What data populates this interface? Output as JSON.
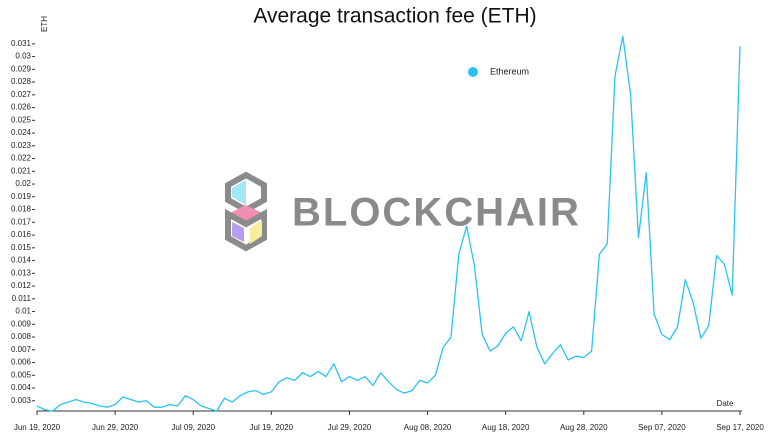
{
  "chart_data": {
    "type": "line",
    "title": "Average transaction fee (ETH)",
    "ylabel": "ETH",
    "xlabel": "Date",
    "watermark": "BLOCKCHAIR",
    "x": [
      "2020-06-19",
      "2020-06-20",
      "2020-06-21",
      "2020-06-22",
      "2020-06-23",
      "2020-06-24",
      "2020-06-25",
      "2020-06-26",
      "2020-06-27",
      "2020-06-28",
      "2020-06-29",
      "2020-06-30",
      "2020-07-01",
      "2020-07-02",
      "2020-07-03",
      "2020-07-04",
      "2020-07-05",
      "2020-07-06",
      "2020-07-07",
      "2020-07-08",
      "2020-07-09",
      "2020-07-10",
      "2020-07-11",
      "2020-07-12",
      "2020-07-13",
      "2020-07-14",
      "2020-07-15",
      "2020-07-16",
      "2020-07-17",
      "2020-07-18",
      "2020-07-19",
      "2020-07-20",
      "2020-07-21",
      "2020-07-22",
      "2020-07-23",
      "2020-07-24",
      "2020-07-25",
      "2020-07-26",
      "2020-07-27",
      "2020-07-28",
      "2020-07-29",
      "2020-07-30",
      "2020-07-31",
      "2020-08-01",
      "2020-08-02",
      "2020-08-03",
      "2020-08-04",
      "2020-08-05",
      "2020-08-06",
      "2020-08-07",
      "2020-08-08",
      "2020-08-09",
      "2020-08-10",
      "2020-08-11",
      "2020-08-12",
      "2020-08-13",
      "2020-08-14",
      "2020-08-15",
      "2020-08-16",
      "2020-08-17",
      "2020-08-18",
      "2020-08-19",
      "2020-08-20",
      "2020-08-21",
      "2020-08-22",
      "2020-08-23",
      "2020-08-24",
      "2020-08-25",
      "2020-08-26",
      "2020-08-27",
      "2020-08-28",
      "2020-08-29",
      "2020-08-30",
      "2020-08-31",
      "2020-09-01",
      "2020-09-02",
      "2020-09-03",
      "2020-09-04",
      "2020-09-05",
      "2020-09-06",
      "2020-09-07",
      "2020-09-08",
      "2020-09-09",
      "2020-09-10",
      "2020-09-11",
      "2020-09-12",
      "2020-09-13",
      "2020-09-14",
      "2020-09-15",
      "2020-09-16",
      "2020-09-17"
    ],
    "series": [
      {
        "name": "Ethereum",
        "color": "#29c4ef",
        "values": [
          0.0026,
          0.0023,
          0.0022,
          0.0027,
          0.0029,
          0.0031,
          0.0029,
          0.0028,
          0.0026,
          0.0025,
          0.0027,
          0.0033,
          0.0031,
          0.0029,
          0.003,
          0.0025,
          0.0025,
          0.0027,
          0.0026,
          0.0034,
          0.0031,
          0.0026,
          0.0024,
          0.0022,
          0.0032,
          0.0029,
          0.0034,
          0.0037,
          0.0038,
          0.0035,
          0.0037,
          0.0045,
          0.0048,
          0.0046,
          0.0052,
          0.0049,
          0.0053,
          0.0049,
          0.0059,
          0.0045,
          0.0049,
          0.0046,
          0.0049,
          0.0042,
          0.0052,
          0.0045,
          0.0039,
          0.0036,
          0.0038,
          0.0046,
          0.0044,
          0.005,
          0.0072,
          0.008,
          0.0145,
          0.0167,
          0.0136,
          0.0082,
          0.0069,
          0.0073,
          0.0083,
          0.0088,
          0.0077,
          0.01,
          0.0072,
          0.0059,
          0.0067,
          0.0074,
          0.0062,
          0.0065,
          0.0064,
          0.0069,
          0.0145,
          0.0153,
          0.0285,
          0.0316,
          0.027,
          0.0158,
          0.0209,
          0.0098,
          0.0082,
          0.0078,
          0.0088,
          0.0125,
          0.0107,
          0.0079,
          0.0089,
          0.0144,
          0.0137,
          0.0113,
          0.0308
        ]
      }
    ],
    "xticks": [
      {
        "value": "2020-06-19",
        "label": "Jun 19, 2020"
      },
      {
        "value": "2020-06-29",
        "label": "Jun 29, 2020"
      },
      {
        "value": "2020-07-09",
        "label": "Jul 09, 2020"
      },
      {
        "value": "2020-07-19",
        "label": "Jul 19, 2020"
      },
      {
        "value": "2020-07-29",
        "label": "Jul 29, 2020"
      },
      {
        "value": "2020-08-08",
        "label": "Aug 08, 2020"
      },
      {
        "value": "2020-08-18",
        "label": "Aug 18, 2020"
      },
      {
        "value": "2020-08-28",
        "label": "Aug 28, 2020"
      },
      {
        "value": "2020-09-07",
        "label": "Sep 07, 2020"
      },
      {
        "value": "2020-09-17",
        "label": "Sep 17, 2020"
      }
    ],
    "ylim": [
      0.0022,
      0.0313
    ],
    "yticks": [
      0.003,
      0.004,
      0.005,
      0.006,
      0.007,
      0.008,
      0.009,
      0.01,
      0.011,
      0.012,
      0.013,
      0.014,
      0.015,
      0.016,
      0.017,
      0.018,
      0.019,
      0.02,
      0.021,
      0.022,
      0.023,
      0.024,
      0.025,
      0.026,
      0.027,
      0.028,
      0.029,
      0.03,
      0.031
    ],
    "grid": false
  }
}
